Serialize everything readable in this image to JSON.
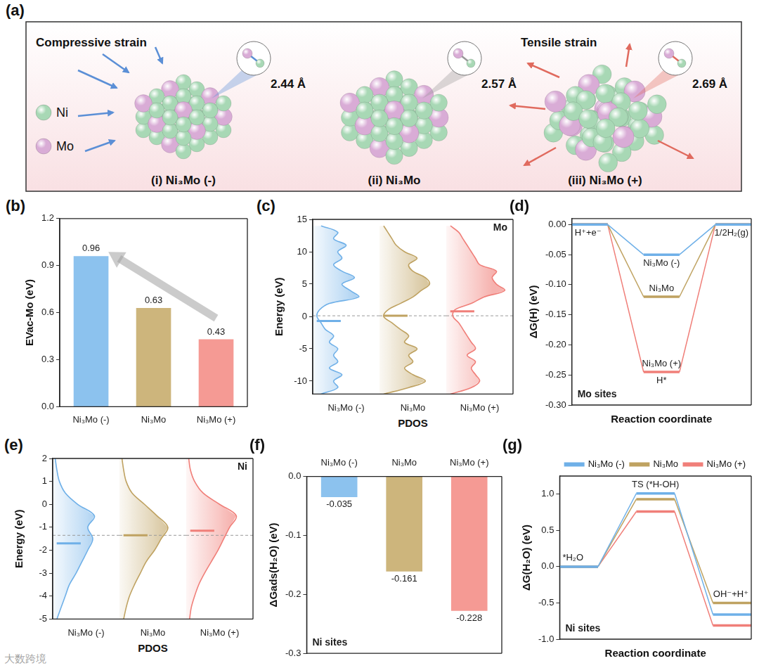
{
  "figure": {
    "watermark": "大数跨境"
  },
  "diagram": {
    "panel": "(a)",
    "legend": [
      {
        "label": "Ni",
        "color": "#a8d8b5"
      },
      {
        "label": "Mo",
        "color": "#d9acd6"
      }
    ],
    "structures": [
      {
        "label": "(i) Ni₃Mo (-)",
        "strain": "Compressive strain",
        "bond": "2.44 Å"
      },
      {
        "label": "(ii) Ni₃Mo",
        "bond": "2.57 Å"
      },
      {
        "label": "(iii) Ni₃Mo (+)",
        "strain": "Tensile strain",
        "bond": "2.69 Å"
      }
    ]
  },
  "chart_data": [
    {
      "panel": "(b)",
      "type": "bar",
      "y_label": "EVac-Mo (eV)",
      "categories": [
        "Ni₃Mo (-)",
        "Ni₃Mo",
        "Ni₃Mo (+)"
      ],
      "values": [
        0.96,
        0.63,
        0.43
      ],
      "colors": [
        "#8cc2ee",
        "#cdb57c",
        "#f59a94"
      ],
      "ylim": [
        0,
        1.2
      ],
      "yticks": [
        {
          "value": 0,
          "label": "0.0"
        },
        0.3,
        0.6,
        0.9,
        1.2
      ],
      "grid": false,
      "data_labels": true
    },
    {
      "panel": "(c)",
      "type": "line",
      "title": "Mo",
      "x_label": "PDOS",
      "y_label": "Energy (eV)",
      "energy": [
        -12,
        -11,
        -10,
        -9,
        -8,
        -7,
        -6,
        -5,
        -4,
        -3,
        -2,
        -1,
        0,
        1,
        2,
        3,
        4,
        5,
        6,
        7,
        8,
        9,
        10,
        11,
        12,
        13,
        14
      ],
      "series": [
        {
          "name": "Ni₃Mo (-)",
          "color": "#6fb0e8",
          "band_center": -0.7,
          "dos": [
            0.1,
            0.3,
            0.25,
            0.35,
            0.2,
            0.3,
            0.25,
            0.3,
            0.2,
            0.25,
            0.15,
            0.1,
            0.05,
            0.08,
            0.2,
            0.55,
            0.45,
            0.35,
            0.5,
            0.35,
            0.25,
            0.35,
            0.3,
            0.4,
            0.25,
            0.3,
            0.1
          ]
        },
        {
          "name": "Ni₃Mo",
          "color": "#bfa261",
          "band_center": 0.1,
          "dos": [
            0.05,
            0.35,
            0.55,
            0.4,
            0.3,
            0.4,
            0.35,
            0.45,
            0.3,
            0.35,
            0.25,
            0.15,
            0.05,
            0.1,
            0.25,
            0.4,
            0.5,
            0.6,
            0.55,
            0.4,
            0.35,
            0.45,
            0.3,
            0.2,
            0.15,
            0.1,
            0.05
          ]
        },
        {
          "name": "Ni₃Mo (+)",
          "color": "#f07f79",
          "band_center": 0.8,
          "dos": [
            0.05,
            0.3,
            0.4,
            0.35,
            0.3,
            0.35,
            0.25,
            0.35,
            0.3,
            0.25,
            0.2,
            0.15,
            0.08,
            0.1,
            0.3,
            0.45,
            0.7,
            0.6,
            0.55,
            0.6,
            0.4,
            0.35,
            0.3,
            0.25,
            0.2,
            0.15,
            0.05
          ]
        }
      ],
      "xlim": [
        0,
        0.8
      ],
      "ylim": [
        -12,
        15
      ],
      "yticks": [
        -10,
        -5,
        0,
        5,
        10,
        15
      ],
      "grid": false,
      "tick_labels": "y"
    },
    {
      "panel": "(d)",
      "type": "line",
      "x_label": "Reaction coordinate",
      "y_label": "ΔG(H) (eV)",
      "states": [
        "H⁺+e⁻",
        "H*",
        "1/2H₂(g)"
      ],
      "series": [
        {
          "name": "Ni₃Mo (-)",
          "color": "#6fb0e8",
          "values": [
            0,
            -0.05,
            0
          ]
        },
        {
          "name": "Ni₃Mo",
          "color": "#bfa261",
          "values": [
            0,
            -0.12,
            0
          ]
        },
        {
          "name": "Ni₃Mo (+)",
          "color": "#f07f79",
          "values": [
            0,
            -0.245,
            0
          ]
        }
      ],
      "annotation": "Mo sites",
      "ylim": [
        -0.3,
        0.01
      ],
      "yticks": [
        {
          "value": -0.3,
          "label": "-0.30"
        },
        -0.25,
        {
          "value": -0.2,
          "label": "-0.20"
        },
        -0.15,
        {
          "value": -0.1,
          "label": "-0.10"
        },
        -0.05,
        {
          "value": 0,
          "label": "0.00"
        }
      ],
      "grid": false,
      "tick_labels": "y"
    },
    {
      "panel": "(e)",
      "type": "line",
      "title": "Ni",
      "x_label": "PDOS",
      "y_label": "Energy (eV)",
      "energy": [
        -5,
        -4.5,
        -4,
        -3.5,
        -3,
        -2.5,
        -2,
        -1.5,
        -1,
        -0.5,
        0,
        0.5,
        1,
        1.5,
        2
      ],
      "series": [
        {
          "name": "Ni₃Mo (-)",
          "color": "#6fb0e8",
          "band_center": -1.7,
          "dos": [
            0.05,
            0.1,
            0.15,
            0.2,
            0.28,
            0.35,
            0.42,
            0.48,
            0.42,
            0.5,
            0.3,
            0.15,
            0.08,
            0.05,
            0.03
          ]
        },
        {
          "name": "Ni₃Mo",
          "color": "#bfa261",
          "band_center": -1.35,
          "dos": [
            0.05,
            0.08,
            0.12,
            0.18,
            0.25,
            0.32,
            0.42,
            0.5,
            0.58,
            0.45,
            0.3,
            0.15,
            0.08,
            0.05,
            0.03
          ]
        },
        {
          "name": "Ni₃Mo (+)",
          "color": "#f07f79",
          "band_center": -1.15,
          "dos": [
            0.04,
            0.06,
            0.1,
            0.15,
            0.22,
            0.3,
            0.38,
            0.45,
            0.52,
            0.6,
            0.4,
            0.2,
            0.1,
            0.05,
            0.03
          ]
        }
      ],
      "xlim": [
        0,
        0.8
      ],
      "ylim": [
        -5,
        2
      ],
      "yticks": [
        -5,
        -4,
        -3,
        -2,
        -1,
        0,
        1,
        2
      ],
      "grid": false,
      "tick_labels": "y"
    },
    {
      "panel": "(f)",
      "type": "bar",
      "y_label": "ΔGads(H₂O) (eV)",
      "categories": [
        "Ni₃Mo (-)",
        "Ni₃Mo",
        "Ni₃Mo (+)"
      ],
      "values": [
        -0.035,
        -0.161,
        -0.228
      ],
      "colors": [
        "#8cc2ee",
        "#cdb57c",
        "#f59a94"
      ],
      "annotation": "Ni sites",
      "ylim": [
        -0.3,
        0
      ],
      "yticks": [
        -0.3,
        -0.2,
        -0.1,
        {
          "value": 0,
          "label": "0.0"
        }
      ],
      "grid": false,
      "data_labels": true
    },
    {
      "panel": "(g)",
      "type": "line",
      "x_label": "Reaction coordinate",
      "y_label": "ΔG(H₂O) (eV)",
      "states": [
        "*H₂O",
        "TS (*H-OH)",
        "OH⁻+H⁺"
      ],
      "series": [
        {
          "name": "Ni₃Mo (-)",
          "color": "#6fb0e8",
          "values": [
            0,
            1.01,
            -0.66
          ]
        },
        {
          "name": "Ni₃Mo",
          "color": "#bfa261",
          "values": [
            0,
            0.93,
            -0.5
          ]
        },
        {
          "name": "Ni₃Mo (+)",
          "color": "#f07f79",
          "values": [
            0,
            0.76,
            -0.81
          ]
        }
      ],
      "annotation": "Ni sites",
      "ylim": [
        -1,
        1.25
      ],
      "yticks": [
        {
          "value": -1,
          "label": "-1.0"
        },
        -0.5,
        {
          "value": 0,
          "label": "0.0"
        },
        0.5,
        {
          "value": 1,
          "label": "1.0"
        }
      ],
      "grid": false,
      "tick_labels": "y",
      "legend": "top-right"
    }
  ]
}
